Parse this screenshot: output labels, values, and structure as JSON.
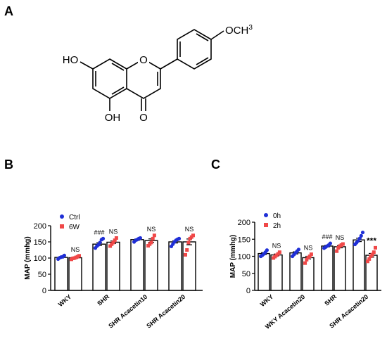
{
  "panels": [
    {
      "letter": "A"
    },
    {
      "letter": "B"
    },
    {
      "letter": "C"
    }
  ],
  "structure": {
    "substituent": "OCH",
    "superscript": "3",
    "hydroxyl_top": "HO",
    "hydroxyl_bottom": "OH",
    "ring_oxygen": "O",
    "carbonyl_oxygen": "O"
  },
  "chart_data": [
    {
      "type": "bar",
      "panel": "B",
      "ylabel": "MAP (mmhg)",
      "xlabel": "",
      "ylim": [
        0,
        200
      ],
      "yticks": [
        0,
        50,
        100,
        150,
        200
      ],
      "categories": [
        "WKY",
        "SHR",
        "SHR Acacetin10",
        "SHR Acacetin20"
      ],
      "series": [
        {
          "name": "Ctrl",
          "color": "#1f2fd6",
          "marker": "circle",
          "values": [
            102,
            143,
            157,
            150
          ],
          "points": [
            [
              97,
              101,
              103,
              104,
              108
            ],
            [
              131,
              137,
              141,
              148,
              157,
              160
            ],
            [
              150,
              155,
              157,
              160,
              162
            ],
            [
              136,
              143,
              150,
              155,
              158,
              160
            ]
          ]
        },
        {
          "name": "6W",
          "color": "#f04848",
          "marker": "square",
          "values": [
            101,
            149,
            154,
            150
          ],
          "points": [
            [
              96,
              99,
              100,
              102,
              104,
              107
            ],
            [
              137,
              143,
              148,
              155,
              162
            ],
            [
              138,
              143,
              148,
              160,
              170
            ],
            [
              110,
              125,
              148,
              160,
              165,
              170
            ]
          ]
        }
      ],
      "annotations": [
        {
          "category": 0,
          "series": 1,
          "text": "NS"
        },
        {
          "category": 1,
          "series": 0,
          "text": "###"
        },
        {
          "category": 1,
          "series": 1,
          "text": "NS"
        },
        {
          "category": 2,
          "series": 1,
          "text": "NS"
        },
        {
          "category": 3,
          "series": 1,
          "text": "NS"
        }
      ],
      "legend_position": "top-left"
    },
    {
      "type": "bar",
      "panel": "C",
      "ylabel": "MAP (mmhg)",
      "xlabel": "",
      "ylim": [
        0,
        200
      ],
      "yticks": [
        0,
        50,
        100,
        150,
        200
      ],
      "categories": [
        "WKY",
        "WKY  Acacetin20",
        "SHR",
        "SHR Acacetin20"
      ],
      "series": [
        {
          "name": "0h",
          "color": "#1f2fd6",
          "marker": "circle",
          "values": [
            108,
            110,
            130,
            148
          ],
          "points": [
            [
              100,
              103,
              107,
              112,
              118
            ],
            [
              100,
              105,
              110,
              115,
              120
            ],
            [
              124,
              127,
              130,
              133,
              138
            ],
            [
              135,
              140,
              145,
              152,
              160,
              170
            ]
          ]
        },
        {
          "name": "2h",
          "color": "#f04848",
          "marker": "square",
          "values": [
            104,
            96,
            128,
            103
          ],
          "points": [
            [
              95,
              99,
              103,
              107,
              112
            ],
            [
              80,
              90,
              96,
              100,
              106
            ],
            [
              115,
              125,
              130,
              133,
              136
            ],
            [
              85,
              92,
              100,
              105,
              112,
              125
            ]
          ]
        }
      ],
      "annotations": [
        {
          "category": 0,
          "series": 1,
          "text": "NS"
        },
        {
          "category": 1,
          "series": 1,
          "text": "NS"
        },
        {
          "category": 2,
          "series": 0,
          "text": "###"
        },
        {
          "category": 2,
          "series": 1,
          "text": "NS"
        },
        {
          "category": 3,
          "series": 1,
          "text": "***"
        }
      ],
      "legend_position": "top-left"
    }
  ]
}
